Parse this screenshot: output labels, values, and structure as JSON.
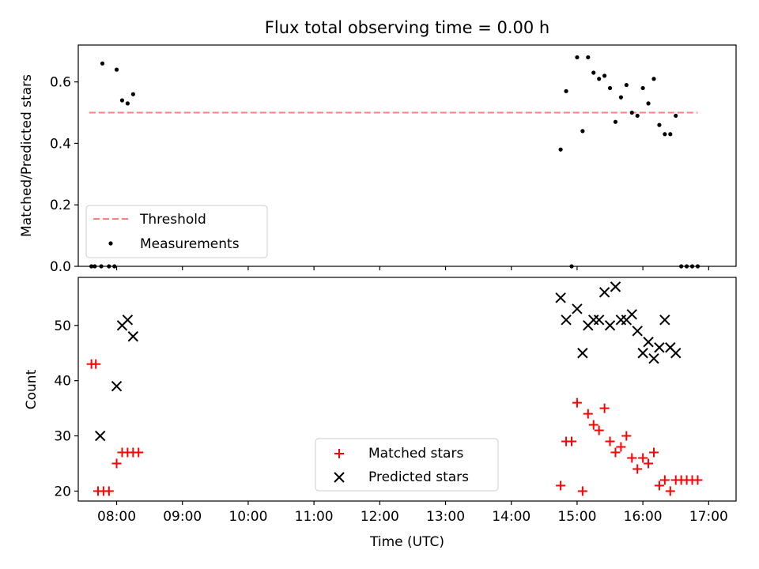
{
  "title": "Flux total observing time = 0.00 h",
  "xlabel": "Time (UTC)",
  "colors": {
    "threshold": "#ff7f7f",
    "measurements": "#000000",
    "matched": "#ff0000",
    "predicted": "#000000"
  },
  "chart_data": [
    {
      "type": "scatter",
      "ylabel": "Matched/Predicted stars",
      "ylim": [
        0,
        0.72
      ],
      "xlim": [
        "07:25",
        "17:25"
      ],
      "yticks": [
        0.0,
        0.2,
        0.4,
        0.6
      ],
      "ytick_labels": [
        "0.0",
        "0.2",
        "0.4",
        "0.6"
      ],
      "grid": false,
      "legend_position": "lower-left",
      "threshold": {
        "name": "Threshold",
        "value": 0.5,
        "x_range": [
          "07:35",
          "16:50"
        ]
      },
      "series": [
        {
          "name": "Measurements",
          "x": [
            "07:37",
            "07:40",
            "07:46",
            "07:53",
            "07:58",
            "07:47",
            "08:00",
            "08:05",
            "08:10",
            "08:15",
            "14:45",
            "14:50",
            "14:55",
            "15:00",
            "15:05",
            "15:10",
            "15:15",
            "15:20",
            "15:25",
            "15:30",
            "15:35",
            "15:40",
            "15:45",
            "15:50",
            "15:55",
            "16:00",
            "16:05",
            "16:10",
            "16:15",
            "16:20",
            "16:25",
            "16:30",
            "16:35",
            "16:40",
            "16:45",
            "16:50"
          ],
          "y": [
            0.0,
            0.0,
            0.0,
            0.0,
            0.0,
            0.66,
            0.64,
            0.54,
            0.53,
            0.56,
            0.38,
            0.57,
            0.0,
            0.68,
            0.44,
            0.68,
            0.63,
            0.61,
            0.62,
            0.58,
            0.47,
            0.55,
            0.59,
            0.5,
            0.49,
            0.58,
            0.53,
            0.61,
            0.46,
            0.43,
            0.43,
            0.49,
            0.0,
            0.0,
            0.0,
            0.0
          ]
        }
      ]
    },
    {
      "type": "scatter",
      "ylabel": "Count",
      "ylim": [
        18.2,
        58.7
      ],
      "xlim": [
        "07:25",
        "17:25"
      ],
      "xticks": [
        "08:00",
        "09:00",
        "10:00",
        "11:00",
        "12:00",
        "13:00",
        "14:00",
        "15:00",
        "16:00",
        "17:00"
      ],
      "yticks": [
        20,
        30,
        40,
        50
      ],
      "ytick_labels": [
        "20",
        "30",
        "40",
        "50"
      ],
      "grid": false,
      "legend_position": "lower-center",
      "series": [
        {
          "name": "Matched stars",
          "marker": "+",
          "x": [
            "07:37",
            "07:41",
            "07:43",
            "07:48",
            "07:53",
            "08:00",
            "08:05",
            "08:10",
            "08:15",
            "08:20",
            "14:45",
            "14:50",
            "14:55",
            "15:00",
            "15:05",
            "15:10",
            "15:15",
            "15:20",
            "15:25",
            "15:30",
            "15:35",
            "15:40",
            "15:45",
            "15:50",
            "15:55",
            "16:00",
            "16:05",
            "16:10",
            "16:15",
            "16:20",
            "16:25",
            "16:30",
            "16:35",
            "16:40",
            "16:45",
            "16:50"
          ],
          "y": [
            43,
            43,
            20,
            20,
            20,
            25,
            27,
            27,
            27,
            27,
            21,
            29,
            29,
            36,
            20,
            34,
            32,
            31,
            35,
            29,
            27,
            28,
            30,
            26,
            24,
            26,
            25,
            27,
            21,
            22,
            20,
            22,
            22,
            22,
            22,
            22
          ]
        },
        {
          "name": "Predicted stars",
          "marker": "x",
          "x": [
            "07:45",
            "08:00",
            "08:05",
            "08:10",
            "08:15",
            "14:45",
            "14:50",
            "15:00",
            "15:05",
            "15:10",
            "15:15",
            "15:20",
            "15:25",
            "15:30",
            "15:35",
            "15:40",
            "15:45",
            "15:50",
            "15:55",
            "16:00",
            "16:05",
            "16:10",
            "16:15",
            "16:20",
            "16:25",
            "16:30"
          ],
          "y": [
            30,
            39,
            50,
            51,
            48,
            55,
            51,
            53,
            45,
            50,
            51,
            51,
            56,
            50,
            57,
            51,
            51,
            52,
            49,
            45,
            47,
            44,
            46,
            51,
            46,
            45
          ]
        }
      ]
    }
  ]
}
